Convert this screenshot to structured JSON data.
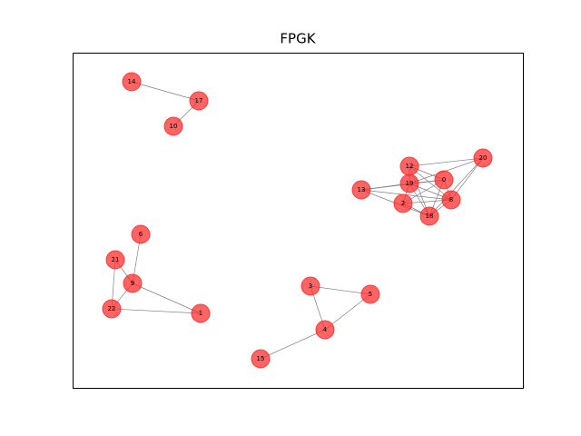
{
  "title": "FPGK",
  "nodes": [
    {
      "label": "14"
    },
    {
      "label": "17"
    },
    {
      "label": "10"
    },
    {
      "label": "20"
    },
    {
      "label": "12"
    },
    {
      "label": "19"
    },
    {
      "label": "0"
    },
    {
      "label": "13"
    },
    {
      "label": "2"
    },
    {
      "label": "8"
    },
    {
      "label": "18"
    },
    {
      "label": "6"
    },
    {
      "label": "21"
    },
    {
      "label": "9"
    },
    {
      "label": "22"
    },
    {
      "label": "1"
    },
    {
      "label": "3"
    },
    {
      "label": "5"
    },
    {
      "label": "4"
    },
    {
      "label": "15"
    }
  ]
}
